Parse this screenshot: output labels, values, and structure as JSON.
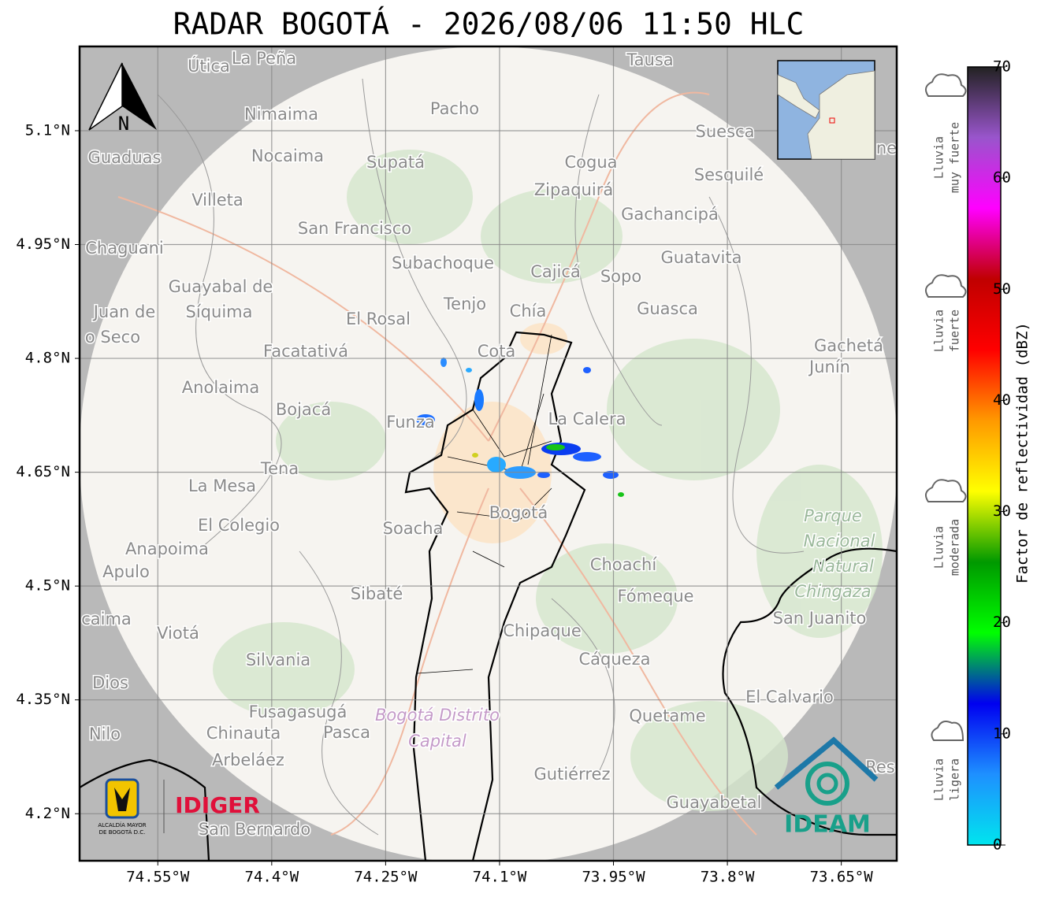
{
  "title": "RADAR BOGOTÁ - 2026/08/06 11:50 HLC",
  "map": {
    "xlim": [
      -74.653,
      -73.577
    ],
    "ylim": [
      4.138,
      5.211
    ],
    "grid": true,
    "xticks": [
      {
        "value": -74.55,
        "label": "74.55°W"
      },
      {
        "value": -74.4,
        "label": "74.4°W"
      },
      {
        "value": -74.25,
        "label": "74.25°W"
      },
      {
        "value": -74.1,
        "label": "74.1°W"
      },
      {
        "value": -73.95,
        "label": "73.95°W"
      },
      {
        "value": -73.8,
        "label": "73.8°W"
      },
      {
        "value": -73.65,
        "label": "73.65°W"
      }
    ],
    "yticks": [
      {
        "value": 5.1,
        "label": "5.1°N"
      },
      {
        "value": 4.95,
        "label": "4.95°N"
      },
      {
        "value": 4.8,
        "label": "4.8°N"
      },
      {
        "value": 4.65,
        "label": "4.65°N"
      },
      {
        "value": 4.5,
        "label": "4.5°N"
      },
      {
        "value": 4.35,
        "label": "4.35°N"
      },
      {
        "value": 4.2,
        "label": "4.2°N"
      }
    ],
    "north_label": "N",
    "places": [
      "Útica",
      "La Peña",
      "Tausa",
      "Pacho",
      "Nimaima",
      "Guaduas",
      "Nocaima",
      "Supatá",
      "Cogua",
      "Suesca",
      "Sesquilé",
      "Zipaquirá",
      "Villeta",
      "Gachancipá",
      "San Francisco",
      "Chaguani",
      "Guatavita",
      "Subachoque",
      "Cajicá",
      "Sopo",
      "Guayabal de",
      "Síquima",
      "Tenjo",
      "Chía",
      "Guasca",
      "Juan de",
      "o Seco",
      "El Rosal",
      "Facatativá",
      "Cota",
      "Gachetá",
      "Junín",
      "Anolaima",
      "Bojacá",
      "Funza",
      "La Calera",
      "Tena",
      "La Mesa",
      "Bogotá",
      "Parque",
      "Nacional",
      "Natural",
      "Chingaza",
      "El Colegio",
      "Soacha",
      "Anapoima",
      "Apulo",
      "Choachí",
      "Sibaté",
      "Fómeque",
      "San Juanito",
      "caima",
      "Viotá",
      "Chipaque",
      "Silvania",
      "Cáqueza",
      "Dios",
      "El Calvario",
      "Fusagasugá",
      "Bogotá Distrito",
      "Capital",
      "Quetame",
      "Nilo",
      "Chinauta",
      "Pasca",
      "Arbeláez",
      "Gutiérrez",
      "Res",
      "Guayabetal",
      "San Bernardo",
      "ne"
    ]
  },
  "colorbar": {
    "label": "Factor de reflectividad (dBZ)",
    "lim": [
      0,
      70
    ],
    "ticks": [
      0,
      10,
      20,
      30,
      40,
      50,
      60,
      70
    ],
    "colors": [
      "#00e5ee",
      "#1e90ff",
      "#0000f0",
      "#00ff00",
      "#009900",
      "#ffff00",
      "#ff9900",
      "#ff0000",
      "#c00000",
      "#ff00ff",
      "#9955cc",
      "#222222"
    ]
  },
  "rain_levels": [
    {
      "lines": [
        "Lluvia",
        "muy fuerte"
      ]
    },
    {
      "lines": [
        "Lluvia",
        "fuerte"
      ]
    },
    {
      "lines": [
        "Lluvia",
        "moderada"
      ]
    },
    {
      "lines": [
        "Lluvia",
        "ligera"
      ]
    }
  ],
  "logos": {
    "alcaldia": [
      "ALCALDÍA MAYOR",
      "DE BOGOTÁ D.C."
    ],
    "idiger": "IDIGER",
    "ideam": "IDEAM"
  }
}
